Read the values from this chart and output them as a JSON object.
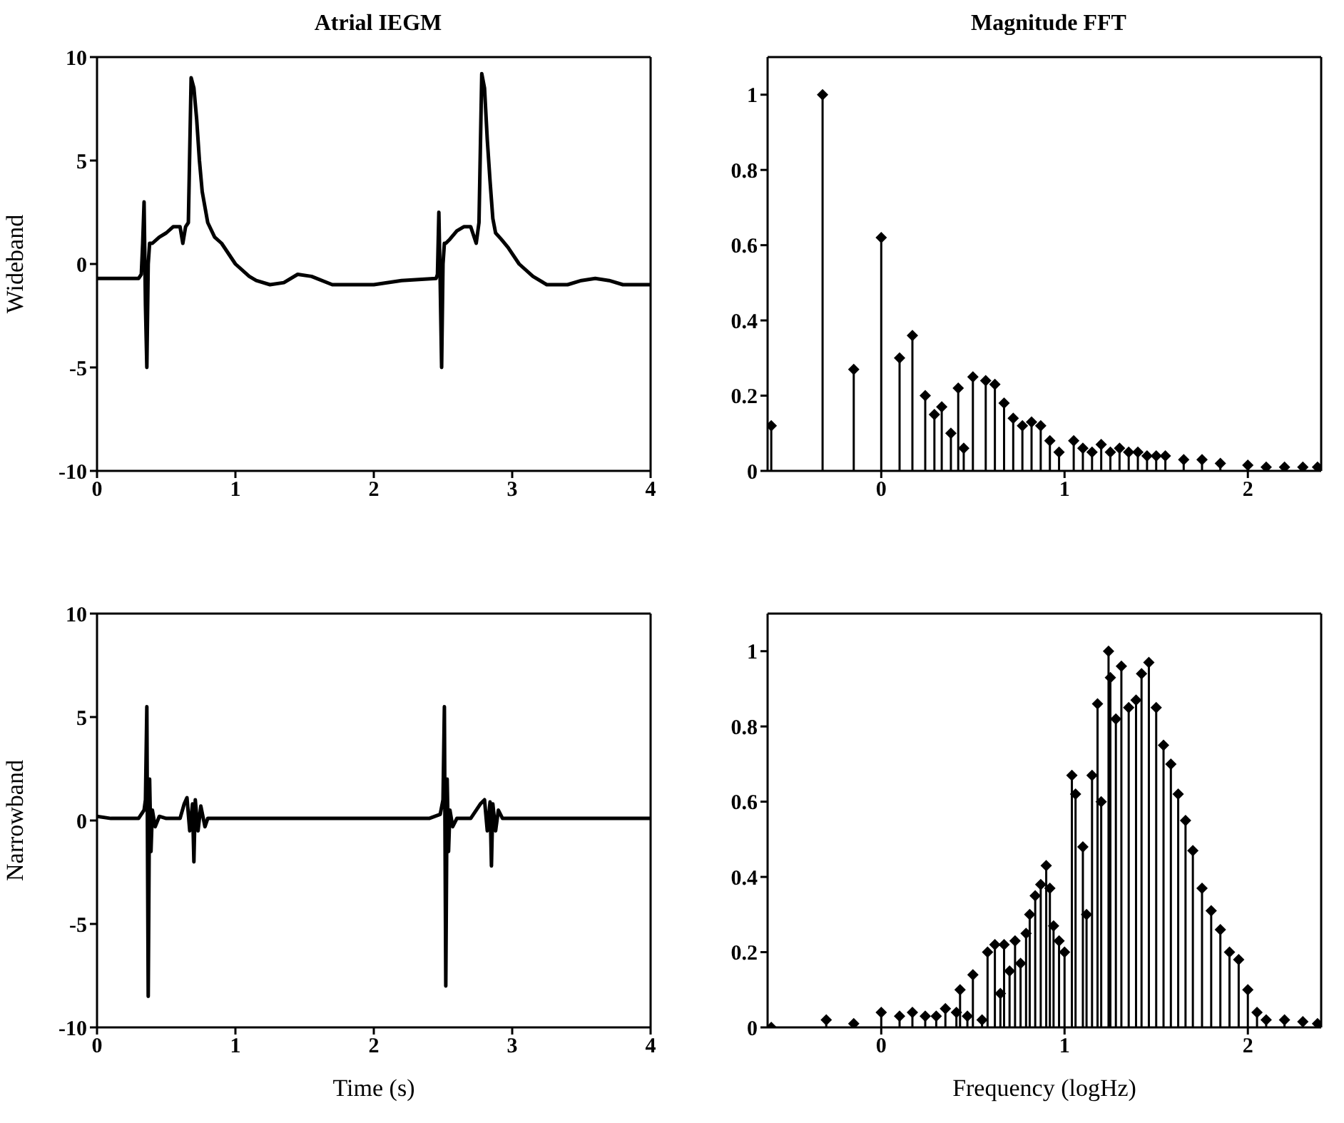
{
  "chart_data": [
    {
      "type": "line",
      "title": "Atrial IEGM",
      "ylabel": "Wideband",
      "color": "#000000",
      "line_style": "solid",
      "xlim": [
        0,
        4
      ],
      "ylim": [
        -10,
        10
      ],
      "xticks": [
        0,
        1,
        2,
        3,
        4
      ],
      "yticks": [
        -10,
        -5,
        0,
        5,
        10
      ],
      "x": [
        0,
        0.1,
        0.2,
        0.3,
        0.32,
        0.33,
        0.34,
        0.35,
        0.36,
        0.37,
        0.38,
        0.4,
        0.45,
        0.5,
        0.55,
        0.6,
        0.62,
        0.64,
        0.66,
        0.68,
        0.7,
        0.72,
        0.74,
        0.76,
        0.8,
        0.85,
        0.9,
        1.0,
        1.1,
        1.15,
        1.25,
        1.35,
        1.45,
        1.55,
        1.7,
        1.85,
        2.0,
        2.2,
        2.45,
        2.46,
        2.47,
        2.48,
        2.49,
        2.5,
        2.51,
        2.52,
        2.55,
        2.6,
        2.65,
        2.7,
        2.74,
        2.76,
        2.78,
        2.8,
        2.82,
        2.84,
        2.86,
        2.88,
        2.92,
        2.97,
        3.05,
        3.15,
        3.25,
        3.3,
        3.4,
        3.5,
        3.6,
        3.7,
        3.8,
        3.9,
        4.0
      ],
      "values": [
        -0.7,
        -0.7,
        -0.7,
        -0.7,
        -0.5,
        1,
        3,
        -2,
        -5,
        0,
        1,
        1,
        1.3,
        1.5,
        1.8,
        1.8,
        1,
        1.8,
        2,
        9,
        8.5,
        7,
        5,
        3.5,
        2,
        1.3,
        1,
        0,
        -0.6,
        -0.8,
        -1,
        -0.9,
        -0.5,
        -0.6,
        -1,
        -1,
        -1,
        -0.8,
        -0.7,
        -0.5,
        2.5,
        -1,
        -5,
        0,
        1,
        1,
        1.2,
        1.6,
        1.8,
        1.8,
        1,
        2,
        9.2,
        8.5,
        6,
        4,
        2.2,
        1.5,
        1.2,
        0.8,
        0,
        -0.6,
        -1,
        -1,
        -1,
        -0.8,
        -0.7,
        -0.8,
        -1,
        -1,
        -1
      ]
    },
    {
      "type": "lollipop",
      "title": "Magnitude FFT",
      "color": "#000000",
      "marker": "diamond",
      "xlim": [
        -0.62,
        2.4
      ],
      "ylim": [
        0,
        1.1
      ],
      "xticks": [
        0,
        1,
        2
      ],
      "yticks": [
        0,
        0.2,
        0.4,
        0.6,
        0.8,
        1
      ],
      "x": [
        -0.6,
        -0.32,
        -0.15,
        0,
        0.1,
        0.17,
        0.24,
        0.29,
        0.33,
        0.38,
        0.42,
        0.45,
        0.5,
        0.57,
        0.62,
        0.67,
        0.72,
        0.77,
        0.82,
        0.87,
        0.92,
        0.97,
        1.05,
        1.1,
        1.15,
        1.2,
        1.25,
        1.3,
        1.35,
        1.4,
        1.45,
        1.5,
        1.55,
        1.65,
        1.75,
        1.85,
        2.0,
        2.1,
        2.2,
        2.3,
        2.38
      ],
      "values": [
        0.12,
        1,
        0.27,
        0.62,
        0.3,
        0.36,
        0.2,
        0.15,
        0.17,
        0.1,
        0.22,
        0.06,
        0.25,
        0.24,
        0.23,
        0.18,
        0.14,
        0.12,
        0.13,
        0.12,
        0.08,
        0.05,
        0.08,
        0.06,
        0.05,
        0.07,
        0.05,
        0.06,
        0.05,
        0.05,
        0.04,
        0.04,
        0.04,
        0.03,
        0.03,
        0.02,
        0.015,
        0.01,
        0.01,
        0.01,
        0.01
      ]
    },
    {
      "type": "line",
      "ylabel": "Narrowband",
      "xlabel": "Time (s)",
      "color": "#000000",
      "line_style": "solid",
      "xlim": [
        0,
        4
      ],
      "ylim": [
        -10,
        10
      ],
      "xticks": [
        0,
        1,
        2,
        3,
        4
      ],
      "yticks": [
        -10,
        -5,
        0,
        5,
        10
      ],
      "x": [
        0,
        0.1,
        0.2,
        0.3,
        0.34,
        0.35,
        0.36,
        0.37,
        0.38,
        0.39,
        0.4,
        0.42,
        0.45,
        0.5,
        0.6,
        0.63,
        0.65,
        0.67,
        0.69,
        0.7,
        0.71,
        0.73,
        0.75,
        0.78,
        0.8,
        0.9,
        1.2,
        1.6,
        2.0,
        2.4,
        2.48,
        2.5,
        2.51,
        2.52,
        2.53,
        2.54,
        2.55,
        2.57,
        2.6,
        2.7,
        2.77,
        2.8,
        2.82,
        2.84,
        2.85,
        2.86,
        2.88,
        2.9,
        2.93,
        3.0,
        3.3,
        3.7,
        4.0
      ],
      "values": [
        0.2,
        0.1,
        0.1,
        0.1,
        0.5,
        1,
        5.5,
        -8.5,
        2,
        -1.5,
        0.5,
        -0.3,
        0.2,
        0.1,
        0.1,
        0.8,
        1.1,
        -0.5,
        0.8,
        -2,
        1,
        -0.5,
        0.7,
        -0.3,
        0.1,
        0.1,
        0.1,
        0.1,
        0.1,
        0.1,
        0.3,
        1,
        5.5,
        -8,
        2,
        -1.5,
        0.5,
        -0.3,
        0.1,
        0.1,
        0.8,
        1,
        -0.5,
        0.9,
        -2.2,
        0.8,
        -0.5,
        0.5,
        0.1,
        0.1,
        0.1,
        0.1,
        0.1
      ]
    },
    {
      "type": "lollipop",
      "xlabel": "Frequency (logHz)",
      "color": "#000000",
      "marker": "diamond",
      "xlim": [
        -0.62,
        2.4
      ],
      "ylim": [
        0,
        1.1
      ],
      "xticks": [
        0,
        1,
        2
      ],
      "yticks": [
        0,
        0.2,
        0.4,
        0.6,
        0.8,
        1
      ],
      "x": [
        -0.6,
        -0.3,
        -0.15,
        0,
        0.1,
        0.17,
        0.24,
        0.3,
        0.35,
        0.41,
        0.43,
        0.47,
        0.5,
        0.55,
        0.58,
        0.62,
        0.65,
        0.67,
        0.7,
        0.73,
        0.76,
        0.79,
        0.81,
        0.84,
        0.87,
        0.9,
        0.92,
        0.94,
        0.97,
        1.0,
        1.04,
        1.06,
        1.1,
        1.12,
        1.15,
        1.18,
        1.2,
        1.24,
        1.25,
        1.28,
        1.31,
        1.35,
        1.39,
        1.42,
        1.46,
        1.5,
        1.54,
        1.58,
        1.62,
        1.66,
        1.7,
        1.75,
        1.8,
        1.85,
        1.9,
        1.95,
        2.0,
        2.05,
        2.1,
        2.2,
        2.3,
        2.38
      ],
      "values": [
        0,
        0.02,
        0.01,
        0.04,
        0.03,
        0.04,
        0.03,
        0.03,
        0.05,
        0.04,
        0.1,
        0.03,
        0.14,
        0.02,
        0.2,
        0.22,
        0.09,
        0.22,
        0.15,
        0.23,
        0.17,
        0.25,
        0.3,
        0.35,
        0.38,
        0.43,
        0.37,
        0.27,
        0.23,
        0.2,
        0.67,
        0.62,
        0.48,
        0.3,
        0.67,
        0.86,
        0.6,
        1,
        0.93,
        0.82,
        0.96,
        0.85,
        0.87,
        0.94,
        0.97,
        0.85,
        0.75,
        0.7,
        0.62,
        0.55,
        0.47,
        0.37,
        0.31,
        0.26,
        0.2,
        0.18,
        0.1,
        0.04,
        0.02,
        0.02,
        0.015,
        0.01
      ]
    }
  ]
}
